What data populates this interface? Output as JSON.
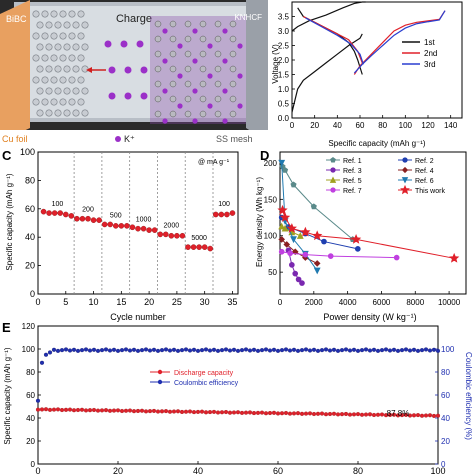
{
  "schematic": {
    "labels": {
      "left_electrode": "BiBC",
      "right_electrode": "KNHCF",
      "center": "Charge",
      "cu_foil": "Cu foil",
      "ion": "K⁺",
      "ss_mesh": "SS mesh"
    },
    "colors": {
      "left_plate": "#e8a060",
      "ion": "#9b30c8",
      "background": "#1a1a1a",
      "lattice_bg": "#6a2d8a"
    }
  },
  "chart_data": [
    {
      "id": "B",
      "type": "line",
      "xlabel": "Specific capacity (mAh g⁻¹)",
      "ylabel": "Voltage (V)",
      "xlim": [
        0,
        150
      ],
      "ylim": [
        0.0,
        4.0
      ],
      "xticks": [
        0,
        20,
        40,
        60,
        80,
        100,
        120,
        140
      ],
      "yticks": [
        "0.0",
        "0.5",
        "1.0",
        "1.5",
        "2.0",
        "2.5",
        "3.0",
        "3.5"
      ],
      "legend_position": "right",
      "series": [
        {
          "name": "1st",
          "color": "#111111",
          "branches": [
            {
              "x": [
                0,
                5,
                15,
                30,
                45,
                55,
                62,
                65
              ],
              "y": [
                3.0,
                3.15,
                3.35,
                3.55,
                3.8,
                3.95,
                4.0,
                4.0
              ]
            },
            {
              "x": [
                0,
                5,
                10,
                20,
                30,
                40,
                50,
                60,
                62
              ],
              "y": [
                0.2,
                1.0,
                1.3,
                1.6,
                1.9,
                2.2,
                2.5,
                2.75,
                2.9
              ]
            },
            {
              "x": [
                62,
                58,
                55,
                50,
                40,
                30,
                20,
                10,
                5
              ],
              "y": [
                1.5,
                2.0,
                2.3,
                2.6,
                2.9,
                3.1,
                3.3,
                3.5,
                3.8
              ]
            }
          ]
        },
        {
          "name": "2nd",
          "color": "#e0202a",
          "branches": [
            {
              "x": [
                55,
                60,
                65,
                70,
                80,
                90,
                100,
                110,
                120,
                130,
                135
              ],
              "y": [
                1.5,
                1.8,
                2.0,
                2.2,
                2.6,
                3.0,
                3.2,
                3.3,
                3.35,
                3.4,
                3.7
              ]
            },
            {
              "x": [
                10,
                25,
                40,
                50,
                58,
                62
              ],
              "y": [
                3.5,
                3.2,
                2.9,
                2.7,
                2.3,
                1.9
              ]
            }
          ]
        },
        {
          "name": "3rd",
          "color": "#2a3fd0",
          "branches": [
            {
              "x": [
                55,
                62,
                70,
                80,
                90,
                100,
                110,
                120,
                130,
                135
              ],
              "y": [
                1.55,
                1.85,
                2.15,
                2.5,
                2.85,
                3.1,
                3.25,
                3.32,
                3.38,
                3.7
              ]
            },
            {
              "x": [
                12,
                26,
                40,
                52,
                60,
                63
              ],
              "y": [
                3.45,
                3.15,
                2.85,
                2.55,
                2.2,
                1.85
              ]
            }
          ]
        }
      ]
    },
    {
      "id": "C",
      "type": "scatter",
      "xlabel": "Cycle number",
      "ylabel": "Specific capacity (mAh g⁻¹)",
      "unit_note": "@ mA g⁻¹",
      "xlim": [
        0,
        36
      ],
      "ylim": [
        0,
        100
      ],
      "xticks": [
        0,
        5,
        10,
        15,
        20,
        25,
        30,
        35
      ],
      "yticks": [
        0,
        20,
        40,
        60,
        80,
        100
      ],
      "color": "#e0202a",
      "groups": [
        {
          "label": "100",
          "cycles": [
            1,
            2,
            3,
            4,
            5,
            6
          ],
          "values": [
            58,
            57,
            57,
            57,
            56,
            55
          ]
        },
        {
          "label": "200",
          "cycles": [
            7,
            8,
            9,
            10,
            11
          ],
          "values": [
            53,
            53,
            53,
            52,
            52
          ]
        },
        {
          "label": "500",
          "cycles": [
            12,
            13,
            14,
            15,
            16
          ],
          "values": [
            49,
            49,
            48,
            48,
            48
          ]
        },
        {
          "label": "1000",
          "cycles": [
            17,
            18,
            19,
            20,
            21
          ],
          "values": [
            47,
            46,
            46,
            45,
            45
          ]
        },
        {
          "label": "2000",
          "cycles": [
            22,
            23,
            24,
            25,
            26
          ],
          "values": [
            42,
            42,
            41,
            41,
            41
          ]
        },
        {
          "label": "5000",
          "cycles": [
            27,
            28,
            29,
            30,
            31
          ],
          "values": [
            33,
            33,
            33,
            33,
            32
          ]
        },
        {
          "label": "100",
          "cycles": [
            32,
            33,
            34,
            35
          ],
          "values": [
            56,
            56,
            56,
            57
          ]
        }
      ],
      "group_label_y": [
        62,
        58,
        54,
        51,
        47,
        38,
        62
      ],
      "separator_cycles": [
        6.5,
        11.5,
        16.5,
        21.5,
        26.5,
        31.5
      ]
    },
    {
      "id": "D",
      "type": "line",
      "xlabel": "Power density (W kg⁻¹)",
      "ylabel": "Energy density (Wh kg⁻¹)",
      "xlim": [
        0,
        11000
      ],
      "ylim": [
        20,
        215
      ],
      "xticks": [
        0,
        2000,
        4000,
        6000,
        8000,
        10000
      ],
      "yticks": [
        50,
        100,
        150,
        200
      ],
      "legend_position": "top",
      "series": [
        {
          "name": "Ref. 1",
          "color": "#5a8a8a",
          "marker": "pentagon",
          "x": [
            150,
            300,
            800,
            2000,
            4300
          ],
          "y": [
            195,
            190,
            170,
            140,
            95
          ]
        },
        {
          "name": "Ref. 2",
          "color": "#1f3fb0",
          "marker": "circle",
          "x": [
            100,
            500,
            1500,
            2600,
            4600
          ],
          "y": [
            125,
            112,
            103,
            92,
            82
          ]
        },
        {
          "name": "Ref. 3",
          "color": "#7a28b0",
          "marker": "circle",
          "x": [
            500,
            700,
            900,
            1100,
            1300
          ],
          "y": [
            80,
            60,
            48,
            40,
            35
          ]
        },
        {
          "name": "Ref. 4",
          "color": "#8a2020",
          "marker": "diamond",
          "x": [
            100,
            400,
            900,
            1500,
            2200
          ],
          "y": [
            95,
            88,
            78,
            70,
            62
          ]
        },
        {
          "name": "Ref. 5",
          "color": "#a0a020",
          "marker": "triangle",
          "x": [
            100,
            300,
            700,
            1200
          ],
          "y": [
            113,
            110,
            105,
            100
          ]
        },
        {
          "name": "Ref. 6",
          "color": "#207ab0",
          "marker": "triangle-down",
          "x": [
            100,
            300,
            800,
            1500,
            2200
          ],
          "y": [
            200,
            120,
            95,
            75,
            52
          ]
        },
        {
          "name": "Ref. 7",
          "color": "#c040e0",
          "marker": "circle",
          "x": [
            100,
            600,
            1500,
            3000,
            6900
          ],
          "y": [
            78,
            76,
            74,
            72,
            70
          ]
        },
        {
          "name": "This work",
          "color": "#e0202a",
          "marker": "star",
          "x": [
            150,
            300,
            700,
            1500,
            2200,
            4500,
            10300
          ],
          "y": [
            135,
            125,
            110,
            105,
            100,
            95,
            69
          ]
        }
      ]
    },
    {
      "id": "E",
      "type": "scatter",
      "xlabel": "",
      "ylabel": "Specific capacity (mAh g⁻¹)",
      "ylabel_right": "Coulombic efficiency (%)",
      "xlim": [
        0,
        100
      ],
      "ylim": [
        0,
        120
      ],
      "ylim_right": [
        0,
        120
      ],
      "xticks": [
        0,
        20,
        40,
        60,
        80,
        100
      ],
      "yticks": [
        0,
        20,
        40,
        60,
        80,
        100,
        120
      ],
      "yticks_right": [
        0,
        20,
        40,
        60,
        80,
        100
      ],
      "annotation": "87.8%",
      "legend_position": "center",
      "series": [
        {
          "name": "Discharge capacity",
          "color": "#e0202a",
          "axis": "left",
          "start": 47.5,
          "end": 42.0
        },
        {
          "name": "Coulombic efficiency",
          "color": "#1f2fb0",
          "axis": "right",
          "first_points": [
            55,
            88,
            95,
            97
          ],
          "plateau": 99
        }
      ]
    }
  ]
}
